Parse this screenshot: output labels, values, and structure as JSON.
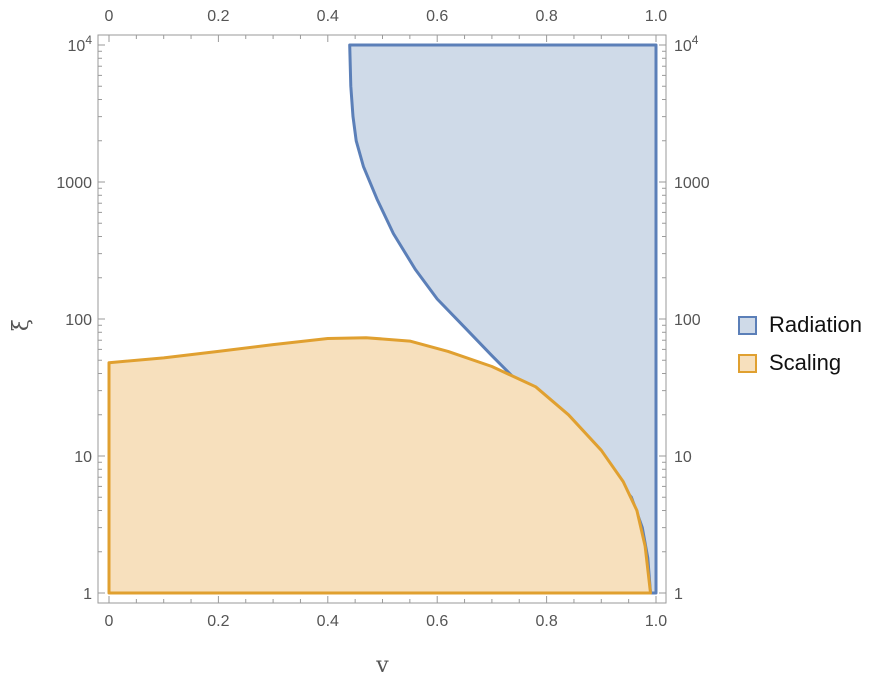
{
  "chart_data": {
    "type": "area",
    "xlabel": "v",
    "ylabel": "ξ",
    "xlim": [
      0,
      1
    ],
    "ylim": [
      1,
      10000
    ],
    "yscale": "log",
    "x_ticks": [
      "0",
      "0.2",
      "0.4",
      "0.6",
      "0.8",
      "1.0"
    ],
    "x_tick_values": [
      0,
      0.2,
      0.4,
      0.6,
      0.8,
      1.0
    ],
    "y_ticks": [
      {
        "value": 1,
        "label": "1"
      },
      {
        "value": 10,
        "label": "10"
      },
      {
        "value": 100,
        "label": "100"
      },
      {
        "value": 1000,
        "label": "1000"
      },
      {
        "value": 10000,
        "label": "10",
        "exp": "4"
      }
    ],
    "legend_position": "right",
    "series": [
      {
        "name": "Radiation",
        "fill": "#cfdae8",
        "stroke": "#5b7fb8",
        "boundary": [
          [
            0.44,
            10000
          ],
          [
            0.442,
            5000
          ],
          [
            0.446,
            3000
          ],
          [
            0.452,
            2000
          ],
          [
            0.465,
            1300
          ],
          [
            0.49,
            750
          ],
          [
            0.52,
            420
          ],
          [
            0.56,
            230
          ],
          [
            0.6,
            140
          ],
          [
            0.65,
            87
          ],
          [
            0.7,
            54
          ],
          [
            0.75,
            34
          ],
          [
            0.8,
            22
          ],
          [
            0.85,
            13
          ],
          [
            0.9,
            9
          ],
          [
            0.93,
            6.5
          ],
          [
            0.955,
            5
          ],
          [
            0.975,
            3
          ],
          [
            0.985,
            1.8
          ],
          [
            0.99,
            1.0
          ],
          [
            1.0,
            1.0
          ],
          [
            1.0,
            10000
          ]
        ]
      },
      {
        "name": "Scaling",
        "fill": "#f7e0bd",
        "stroke": "#e0a030",
        "boundary": [
          [
            0,
            1
          ],
          [
            0,
            48
          ],
          [
            0.1,
            52
          ],
          [
            0.2,
            58
          ],
          [
            0.3,
            65
          ],
          [
            0.4,
            72
          ],
          [
            0.47,
            73
          ],
          [
            0.55,
            69
          ],
          [
            0.62,
            58
          ],
          [
            0.7,
            45
          ],
          [
            0.78,
            32
          ],
          [
            0.84,
            20
          ],
          [
            0.9,
            11
          ],
          [
            0.94,
            6.5
          ],
          [
            0.965,
            4
          ],
          [
            0.98,
            2.2
          ],
          [
            0.99,
            1
          ]
        ]
      }
    ]
  }
}
